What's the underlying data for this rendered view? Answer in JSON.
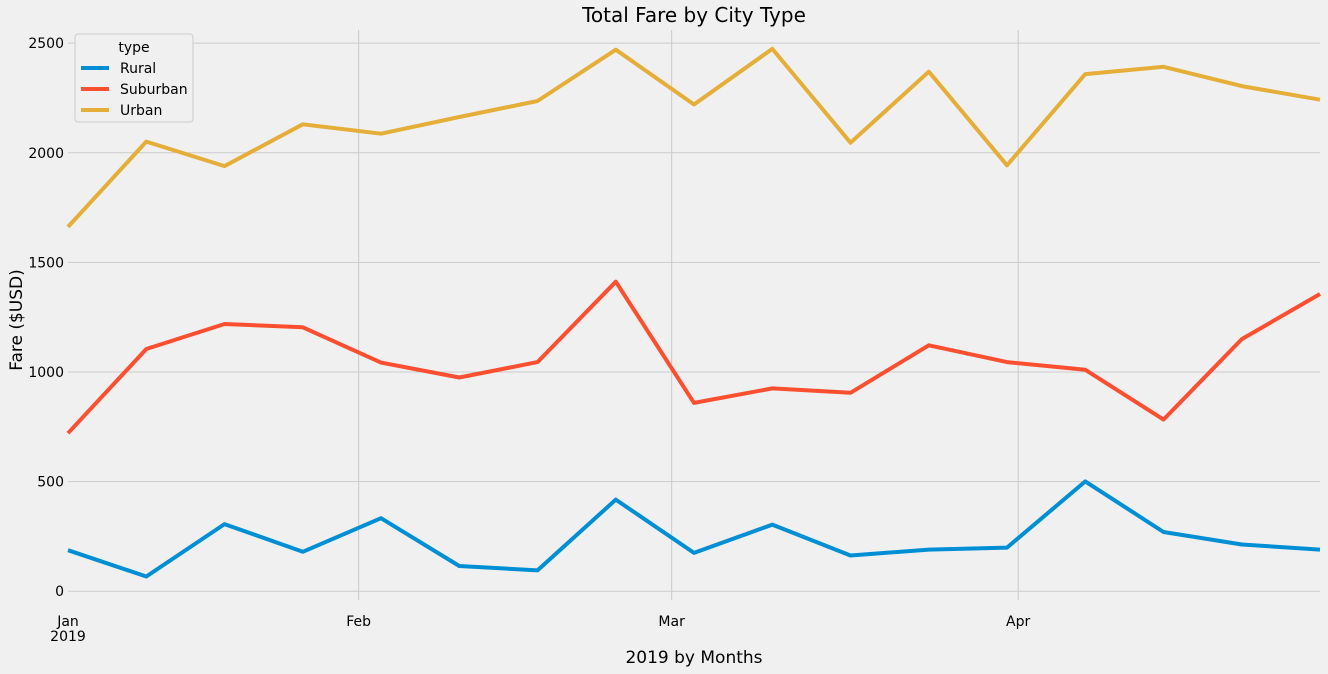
{
  "chart_data": {
    "type": "line",
    "title": "Total Fare by City Type",
    "xlabel": "2019 by Months",
    "ylabel": "Fare ($USD)",
    "ylim": [
      -40,
      2560
    ],
    "yticks": [
      0,
      500,
      1000,
      1500,
      2000,
      2500
    ],
    "x": [
      "2019-01-06",
      "2019-01-13",
      "2019-01-20",
      "2019-01-27",
      "2019-02-03",
      "2019-02-10",
      "2019-02-17",
      "2019-02-24",
      "2019-03-03",
      "2019-03-10",
      "2019-03-17",
      "2019-03-24",
      "2019-03-31",
      "2019-04-07",
      "2019-04-14",
      "2019-04-21",
      "2019-04-28"
    ],
    "xticks": [
      {
        "label": "Jan",
        "sublabel": "2019",
        "date": "2019-01-01"
      },
      {
        "label": "Feb",
        "sublabel": "",
        "date": "2019-02-01"
      },
      {
        "label": "Mar",
        "sublabel": "",
        "date": "2019-03-01"
      },
      {
        "label": "Apr",
        "sublabel": "",
        "date": "2019-04-01"
      }
    ],
    "grid": true,
    "legend": {
      "title": "type",
      "position": "top-left"
    },
    "series": [
      {
        "name": "Rural",
        "color": "#008fd5",
        "values": [
          187,
          67,
          306,
          180,
          333,
          115,
          95,
          418,
          175,
          304,
          163,
          190,
          199,
          501,
          270,
          213,
          190
        ]
      },
      {
        "name": "Suburban",
        "color": "#fc4f30",
        "values": [
          721,
          1105,
          1219,
          1204,
          1043,
          975,
          1045,
          1412,
          859,
          925,
          905,
          1122,
          1045,
          1010,
          783,
          1150,
          1356
        ]
      },
      {
        "name": "Urban",
        "color": "#e5ae38",
        "values": [
          1662,
          2051,
          1939,
          2130,
          2087,
          2163,
          2236,
          2470,
          2220,
          2474,
          2046,
          2370,
          1943,
          2359,
          2392,
          2304,
          2242
        ]
      }
    ]
  }
}
